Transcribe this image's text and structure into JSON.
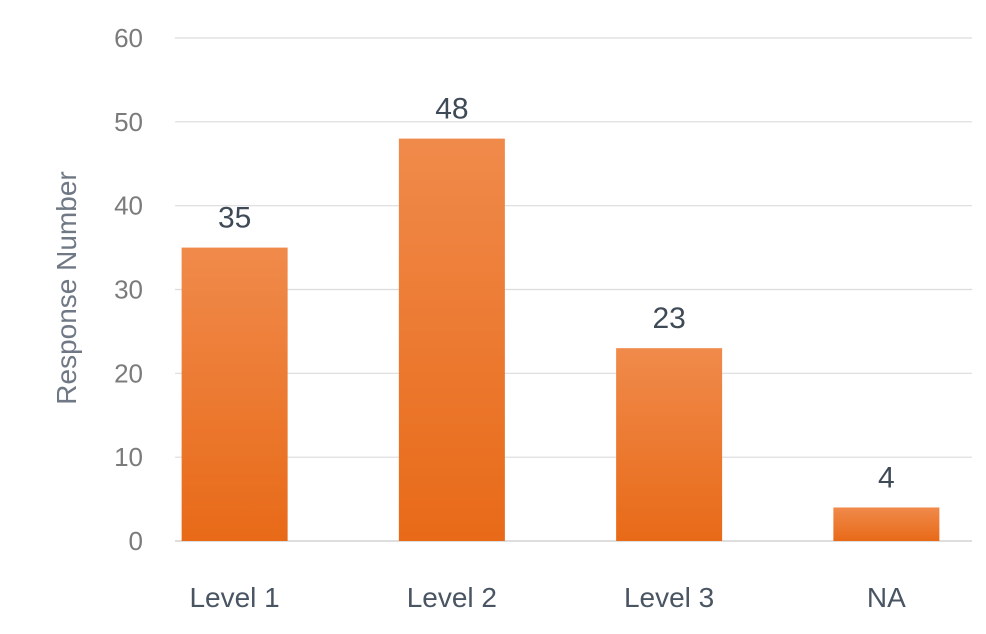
{
  "colors": {
    "bar_top": "#f08a4b",
    "bar_bottom": "#e86a18",
    "grid": "#dcdcdc",
    "text": "#4a5563"
  },
  "chart_data": {
    "type": "bar",
    "title": "",
    "xlabel": "",
    "ylabel": "Response Number",
    "categories": [
      "Level 1",
      "Level 2",
      "Level 3",
      "NA"
    ],
    "values": [
      35,
      48,
      23,
      4
    ],
    "data_labels": [
      "35",
      "48",
      "23",
      "4"
    ],
    "ylim": [
      0,
      60
    ],
    "yticks": [
      0,
      10,
      20,
      30,
      40,
      50,
      60
    ],
    "ytick_labels": [
      "0",
      "10",
      "20",
      "30",
      "40",
      "50",
      "60"
    ],
    "grid": true,
    "legend": "none"
  }
}
